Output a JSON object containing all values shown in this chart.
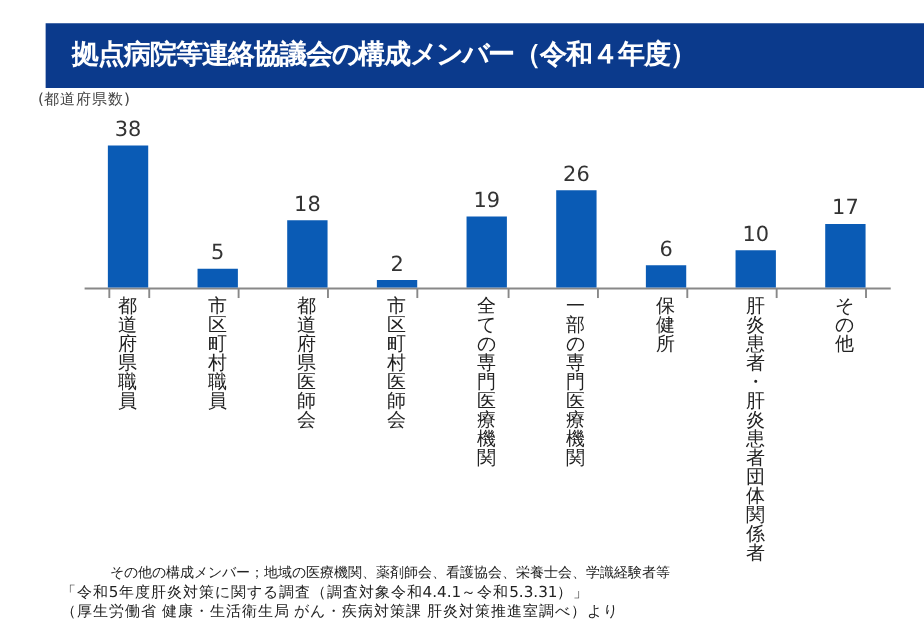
{
  "chart_data": {
    "type": "bar",
    "title": "拠点病院等連絡協議会の構成メンバー（令和４年度）",
    "ylabel": "(都道府県数)",
    "categories": [
      "都道府県職員",
      "市区町村職員",
      "都道府県医師会",
      "市区町村医師会",
      "全ての専門医療機関",
      "一部の専門医療機関",
      "保健所",
      "肝炎患者・肝炎患者団体関係者",
      "その他"
    ],
    "values": [
      38,
      5,
      18,
      2,
      19,
      26,
      6,
      10,
      17
    ],
    "color": "#0a5bb5",
    "data_labels": true,
    "annotations": [
      "その他の構成メンバー；地域の医療機関、薬剤師会、看護協会、栄養士会、学識経験者等",
      "「令和5年度肝炎対策に関する調査（調査対象令和4.4.1～令和5.3.31）」（厚生労働省 健康・生活衛生局 がん・疾病対策課 肝炎対策推進室調べ）より"
    ]
  }
}
